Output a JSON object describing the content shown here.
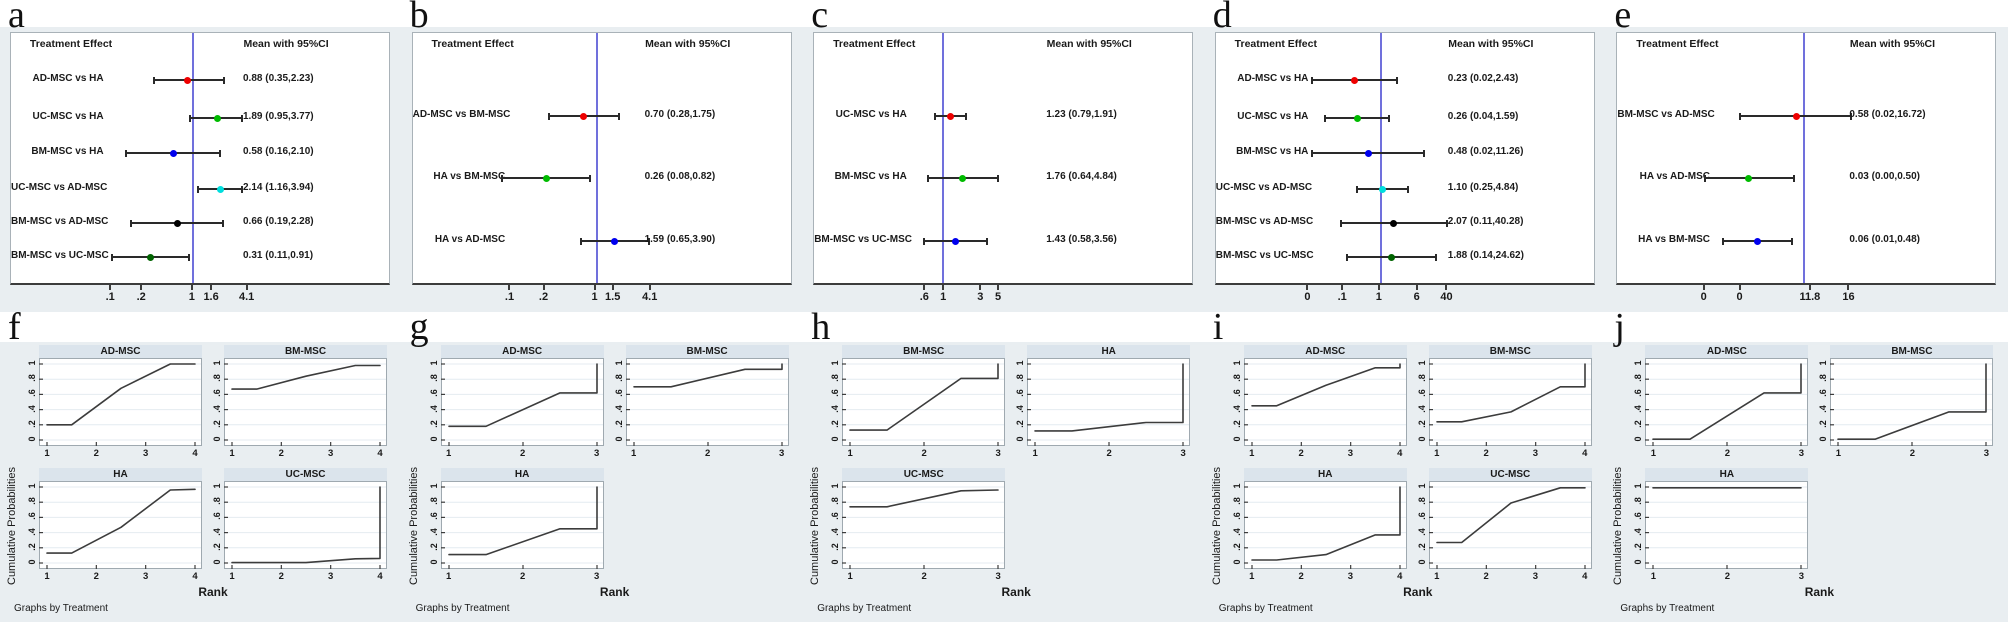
{
  "shared": {
    "col_header_left": "Treatment Effect",
    "col_header_right": "Mean with 95%CI",
    "ylabel": "Cumulative Probabilities",
    "xlabel": "Rank",
    "note": "Graphs by Treatment",
    "yticks": [
      {
        "label": "0",
        "v": 0.0
      },
      {
        "label": ".2",
        "v": 0.2
      },
      {
        "label": ".4",
        "v": 0.4
      },
      {
        "label": ".6",
        "v": 0.6
      },
      {
        "label": ".8",
        "v": 0.8
      },
      {
        "label": "1",
        "v": 1.0
      }
    ],
    "colors": {
      "background": "#e9eef1",
      "band": "#ffffff",
      "panel": "#ffffff",
      "panel_border": "#a9b2b8",
      "axis": "#3c3c3c",
      "ref_line": "#7070dc",
      "grid": "#e4ebf1",
      "header_bar": "#dbe4ec",
      "curve": "#3c3c3c"
    }
  },
  "chart_data": {
    "forest_plots": [
      {
        "letter": "a",
        "type": "forest",
        "ref_line_f": 0.481,
        "xticks": [
          {
            "label": ".1",
            "f": 0.265
          },
          {
            "label": ".2",
            "f": 0.347
          },
          {
            "label": "1",
            "f": 0.481
          },
          {
            "label": "1.6",
            "f": 0.532
          },
          {
            "label": "4.1",
            "f": 0.626
          }
        ],
        "rows": [
          {
            "label": "AD-MSC vs HA",
            "mean": 0.88,
            "lo": 0.35,
            "hi": 2.23,
            "text": "0.88 (0.35,2.23)",
            "color": "#ee0000",
            "lo_f": 0.379,
            "mean_f": 0.468,
            "hi_f": 0.563
          },
          {
            "label": "UC-MSC vs HA",
            "mean": 1.89,
            "lo": 0.95,
            "hi": 3.77,
            "text": "1.89 (0.95,3.77)",
            "color": "#00bb00",
            "lo_f": 0.474,
            "mean_f": 0.545,
            "hi_f": 0.61
          },
          {
            "label": "BM-MSC vs HA",
            "mean": 0.58,
            "lo": 0.16,
            "hi": 2.1,
            "text": "0.58 (0.16,2.10)",
            "color": "#0000ee",
            "lo_f": 0.303,
            "mean_f": 0.429,
            "hi_f": 0.552
          },
          {
            "label": "UC-MSC vs AD-MSC",
            "mean": 2.14,
            "lo": 1.16,
            "hi": 3.94,
            "text": "2.14 (1.16,3.94)",
            "color": "#00dede",
            "lo_f": 0.494,
            "mean_f": 0.553,
            "hi_f": 0.612
          },
          {
            "label": "BM-MSC vs AD-MSC",
            "mean": 0.66,
            "lo": 0.19,
            "hi": 2.28,
            "text": "0.66 (0.19,2.28)",
            "color": "#000000",
            "lo_f": 0.318,
            "mean_f": 0.44,
            "hi_f": 0.56
          },
          {
            "label": "BM-MSC vs UC-MSC",
            "mean": 0.31,
            "lo": 0.11,
            "hi": 0.91,
            "text": "0.31 (0.11,0.91)",
            "color": "#006400",
            "lo_f": 0.268,
            "mean_f": 0.368,
            "hi_f": 0.472
          }
        ]
      },
      {
        "letter": "b",
        "type": "forest",
        "ref_line_f": 0.487,
        "xticks": [
          {
            "label": ".1",
            "f": 0.259
          },
          {
            "label": ".2",
            "f": 0.349
          },
          {
            "label": "1",
            "f": 0.484
          },
          {
            "label": "1.5",
            "f": 0.532
          },
          {
            "label": "4.1",
            "f": 0.63
          }
        ],
        "rows": [
          {
            "label": "AD-MSC vs BM-MSC",
            "mean": 0.7,
            "lo": 0.28,
            "hi": 1.75,
            "text": "0.70 (0.28,1.75)",
            "color": "#ee0000",
            "lo_f": 0.362,
            "mean_f": 0.453,
            "hi_f": 0.545
          },
          {
            "label": "HA vs BM-MSC",
            "mean": 0.26,
            "lo": 0.08,
            "hi": 0.82,
            "text": "0.26 (0.08,0.82)",
            "color": "#00bb00",
            "lo_f": 0.237,
            "mean_f": 0.355,
            "hi_f": 0.469
          },
          {
            "label": "HA vs AD-MSC",
            "mean": 1.59,
            "lo": 0.65,
            "hi": 3.9,
            "text": "1.59 (0.65,3.90)",
            "color": "#0000ee",
            "lo_f": 0.446,
            "mean_f": 0.535,
            "hi_f": 0.625
          }
        ]
      },
      {
        "letter": "c",
        "type": "forest",
        "ref_line_f": 0.341,
        "xticks": [
          {
            "label": ".6",
            "f": 0.294
          },
          {
            "label": "1",
            "f": 0.344
          },
          {
            "label": "3",
            "f": 0.442
          },
          {
            "label": "5",
            "f": 0.489
          }
        ],
        "rows": [
          {
            "label": "UC-MSC vs HA",
            "mean": 1.23,
            "lo": 0.79,
            "hi": 1.91,
            "text": "1.23 (0.79,1.91)",
            "color": "#ee0000",
            "lo_f": 0.319,
            "mean_f": 0.36,
            "hi_f": 0.401
          },
          {
            "label": "BM-MSC vs HA",
            "mean": 1.76,
            "lo": 0.64,
            "hi": 4.84,
            "text": "1.76 (0.64,4.84)",
            "color": "#00bb00",
            "lo_f": 0.3,
            "mean_f": 0.393,
            "hi_f": 0.486
          },
          {
            "label": "BM-MSC vs UC-MSC",
            "mean": 1.43,
            "lo": 0.58,
            "hi": 3.56,
            "text": "1.43 (0.58,3.56)",
            "color": "#0000ee",
            "lo_f": 0.291,
            "mean_f": 0.374,
            "hi_f": 0.458
          }
        ]
      },
      {
        "letter": "d",
        "type": "forest",
        "ref_line_f": 0.437,
        "xticks": [
          {
            "label": "0",
            "f": 0.245
          },
          {
            "label": ".1",
            "f": 0.337
          },
          {
            "label": "1",
            "f": 0.434
          },
          {
            "label": "6",
            "f": 0.534
          },
          {
            "label": "40",
            "f": 0.613
          }
        ],
        "rows": [
          {
            "label": "AD-MSC vs HA",
            "mean": 0.23,
            "lo": 0.02,
            "hi": 2.43,
            "text": "0.23 (0.02,2.43)",
            "color": "#ee0000",
            "lo_f": 0.255,
            "mean_f": 0.368,
            "hi_f": 0.479
          },
          {
            "label": "UC-MSC vs HA",
            "mean": 0.26,
            "lo": 0.04,
            "hi": 1.59,
            "text": "0.26 (0.04,1.59)",
            "color": "#00bb00",
            "lo_f": 0.29,
            "mean_f": 0.376,
            "hi_f": 0.458
          },
          {
            "label": "BM-MSC vs HA",
            "mean": 0.48,
            "lo": 0.02,
            "hi": 11.26,
            "text": "0.48 (0.02,11.26)",
            "color": "#0000ee",
            "lo_f": 0.255,
            "mean_f": 0.404,
            "hi_f": 0.55
          },
          {
            "label": "UC-MSC vs AD-MSC",
            "mean": 1.1,
            "lo": 0.25,
            "hi": 4.84,
            "text": "1.10 (0.25,4.84)",
            "color": "#00dede",
            "lo_f": 0.374,
            "mean_f": 0.441,
            "hi_f": 0.509
          },
          {
            "label": "BM-MSC vs AD-MSC",
            "mean": 2.07,
            "lo": 0.11,
            "hi": 40.28,
            "text": "2.07 (0.11,40.28)",
            "color": "#000000",
            "lo_f": 0.33,
            "mean_f": 0.47,
            "hi_f": 0.613
          },
          {
            "label": "BM-MSC vs UC-MSC",
            "mean": 1.88,
            "lo": 0.14,
            "hi": 24.62,
            "text": "1.88 (0.14,24.62)",
            "color": "#006400",
            "lo_f": 0.347,
            "mean_f": 0.466,
            "hi_f": 0.583
          }
        ]
      },
      {
        "letter": "e",
        "type": "forest",
        "ref_line_f": 0.494,
        "xticks": [
          {
            "label": "0",
            "f": 0.231
          },
          {
            "label": "0",
            "f": 0.326
          },
          {
            "label": "11.8",
            "f": 0.512
          },
          {
            "label": "16",
            "f": 0.614
          }
        ],
        "rows": [
          {
            "label": "BM-MSC vs AD-MSC",
            "mean": 0.58,
            "lo": 0.02,
            "hi": 16.72,
            "text": "0.58 (0.02,16.72)",
            "color": "#ee0000",
            "lo_f": 0.324,
            "mean_f": 0.473,
            "hi_f": 0.617
          },
          {
            "label": "HA vs AD-MSC",
            "mean": 0.03,
            "lo": 0.0,
            "hi": 0.5,
            "text": "0.03 (0.00,0.50)",
            "color": "#00bb00",
            "lo_f": 0.231,
            "mean_f": 0.347,
            "hi_f": 0.468
          },
          {
            "label": "HA vs BM-MSC",
            "mean": 0.06,
            "lo": 0.01,
            "hi": 0.48,
            "text": "0.06 (0.01,0.48)",
            "color": "#0000ee",
            "lo_f": 0.28,
            "mean_f": 0.372,
            "hi_f": 0.463
          }
        ]
      }
    ],
    "rank_plots": [
      {
        "letter": "f",
        "type": "line",
        "xticks": [
          1,
          2,
          3,
          4
        ],
        "subplots": [
          {
            "title": "AD-MSC",
            "points": [
              [
                1,
                0.2
              ],
              [
                1.5,
                0.2
              ],
              [
                2.5,
                0.68
              ],
              [
                3.5,
                1.0
              ],
              [
                4,
                1.0
              ]
            ]
          },
          {
            "title": "BM-MSC",
            "points": [
              [
                1,
                0.67
              ],
              [
                1.5,
                0.67
              ],
              [
                2.5,
                0.84
              ],
              [
                3.5,
                0.98
              ],
              [
                4,
                0.98
              ]
            ]
          },
          {
            "title": "HA",
            "points": [
              [
                1,
                0.13
              ],
              [
                1.5,
                0.13
              ],
              [
                2.5,
                0.47
              ],
              [
                3.5,
                0.96
              ],
              [
                4,
                0.97
              ]
            ]
          },
          {
            "title": "UC-MSC",
            "points": [
              [
                1,
                0.005
              ],
              [
                2.5,
                0.005
              ],
              [
                3.5,
                0.055
              ],
              [
                4,
                0.06
              ],
              [
                4,
                1.0
              ]
            ]
          }
        ]
      },
      {
        "letter": "g",
        "type": "line",
        "xticks": [
          1,
          2,
          3
        ],
        "subplots": [
          {
            "title": "AD-MSC",
            "points": [
              [
                1,
                0.18
              ],
              [
                1.5,
                0.18
              ],
              [
                2.5,
                0.62
              ],
              [
                3,
                0.62
              ],
              [
                3,
                1.0
              ]
            ]
          },
          {
            "title": "BM-MSC",
            "points": [
              [
                1,
                0.7
              ],
              [
                1.5,
                0.7
              ],
              [
                2.5,
                0.93
              ],
              [
                3,
                0.93
              ],
              [
                3,
                1.0
              ]
            ]
          },
          {
            "title": "HA",
            "points": [
              [
                1,
                0.11
              ],
              [
                1.5,
                0.11
              ],
              [
                2.5,
                0.45
              ],
              [
                3,
                0.45
              ],
              [
                3,
                1.0
              ]
            ]
          }
        ]
      },
      {
        "letter": "h",
        "type": "line",
        "xticks": [
          1,
          2,
          3
        ],
        "subplots": [
          {
            "title": "BM-MSC",
            "points": [
              [
                1,
                0.13
              ],
              [
                1.5,
                0.13
              ],
              [
                2.5,
                0.81
              ],
              [
                3,
                0.81
              ],
              [
                3,
                1.0
              ]
            ]
          },
          {
            "title": "HA",
            "points": [
              [
                1,
                0.12
              ],
              [
                1.5,
                0.12
              ],
              [
                2.5,
                0.23
              ],
              [
                3,
                0.23
              ],
              [
                3,
                1.0
              ]
            ]
          },
          {
            "title": "UC-MSC",
            "points": [
              [
                1,
                0.74
              ],
              [
                1.5,
                0.74
              ],
              [
                2.5,
                0.95
              ],
              [
                3,
                0.96
              ]
            ]
          }
        ]
      },
      {
        "letter": "i",
        "type": "line",
        "xticks": [
          1,
          2,
          3,
          4
        ],
        "subplots": [
          {
            "title": "AD-MSC",
            "points": [
              [
                1,
                0.45
              ],
              [
                1.5,
                0.45
              ],
              [
                2.5,
                0.72
              ],
              [
                3.5,
                0.95
              ],
              [
                4,
                0.95
              ],
              [
                4,
                1.0
              ]
            ]
          },
          {
            "title": "BM-MSC",
            "points": [
              [
                1,
                0.24
              ],
              [
                1.5,
                0.24
              ],
              [
                2.5,
                0.37
              ],
              [
                3.5,
                0.7
              ],
              [
                4,
                0.7
              ],
              [
                4,
                1.0
              ]
            ]
          },
          {
            "title": "HA",
            "points": [
              [
                1,
                0.04
              ],
              [
                1.5,
                0.04
              ],
              [
                2.5,
                0.11
              ],
              [
                3.5,
                0.37
              ],
              [
                4,
                0.37
              ],
              [
                4,
                1.0
              ]
            ]
          },
          {
            "title": "UC-MSC",
            "points": [
              [
                1,
                0.27
              ],
              [
                1.5,
                0.27
              ],
              [
                2.5,
                0.79
              ],
              [
                3.5,
                0.99
              ],
              [
                4,
                0.99
              ]
            ]
          }
        ]
      },
      {
        "letter": "j",
        "type": "line",
        "xticks": [
          1,
          2,
          3
        ],
        "subplots": [
          {
            "title": "AD-MSC",
            "points": [
              [
                1,
                0.01
              ],
              [
                1.5,
                0.01
              ],
              [
                2.5,
                0.62
              ],
              [
                3,
                0.62
              ],
              [
                3,
                1.0
              ]
            ]
          },
          {
            "title": "BM-MSC",
            "points": [
              [
                1,
                0.01
              ],
              [
                1.5,
                0.01
              ],
              [
                2.5,
                0.37
              ],
              [
                3,
                0.37
              ],
              [
                3,
                1.0
              ]
            ]
          },
          {
            "title": "HA",
            "points": [
              [
                1,
                0.99
              ],
              [
                3,
                0.99
              ]
            ]
          }
        ]
      }
    ]
  }
}
